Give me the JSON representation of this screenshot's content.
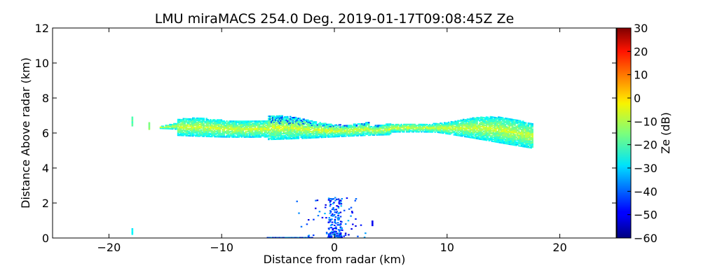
{
  "chart_data": {
    "type": "heatmap",
    "title": "LMU miraMACS 254.0 Deg. 2019-01-17T09:08:45Z  Ze",
    "xlabel": "Distance from radar (km)",
    "ylabel": "Distance Above radar  (km)",
    "xlim": [
      -25,
      25
    ],
    "ylim": [
      0,
      12
    ],
    "xticks": [
      "−20",
      "−10",
      "0",
      "10",
      "20"
    ],
    "xtick_values": [
      -20,
      -10,
      0,
      10,
      20
    ],
    "yticks": [
      "0",
      "2",
      "4",
      "6",
      "8",
      "10",
      "12"
    ],
    "ytick_values": [
      0,
      2,
      4,
      6,
      8,
      10,
      12
    ],
    "colorbar": {
      "label": "Ze (dB)",
      "range": [
        -60,
        30
      ],
      "ticks": [
        "30",
        "20",
        "10",
        "0",
        "−10",
        "−20",
        "−30",
        "−40",
        "−50",
        "−60"
      ],
      "tick_values": [
        30,
        20,
        10,
        0,
        -10,
        -20,
        -30,
        -40,
        -50,
        -60
      ],
      "colormap": "jet"
    },
    "features": [
      {
        "name": "main-cloud-layer",
        "x_range": [
          -15.5,
          17.5
        ],
        "top_km": [
          6.4,
          7.0
        ],
        "base_km": [
          5.6,
          4.8
        ],
        "ze_db": [
          -30,
          -5
        ]
      },
      {
        "name": "cloud-fragment-left",
        "x": -18,
        "y_range": [
          6.4,
          6.9
        ],
        "ze_db": -18
      },
      {
        "name": "cloud-fragment-left-2",
        "x": -16.5,
        "y_range": [
          6.2,
          6.6
        ],
        "ze_db": -15
      },
      {
        "name": "ground-clutter-plume",
        "x_range": [
          -6,
          3.5
        ],
        "y_range": [
          0,
          2.4
        ],
        "ze_db": [
          -55,
          -25
        ]
      },
      {
        "name": "surface-echo-left",
        "x": -18,
        "y_range": [
          0.2,
          0.5
        ],
        "ze_db": -28
      }
    ]
  }
}
